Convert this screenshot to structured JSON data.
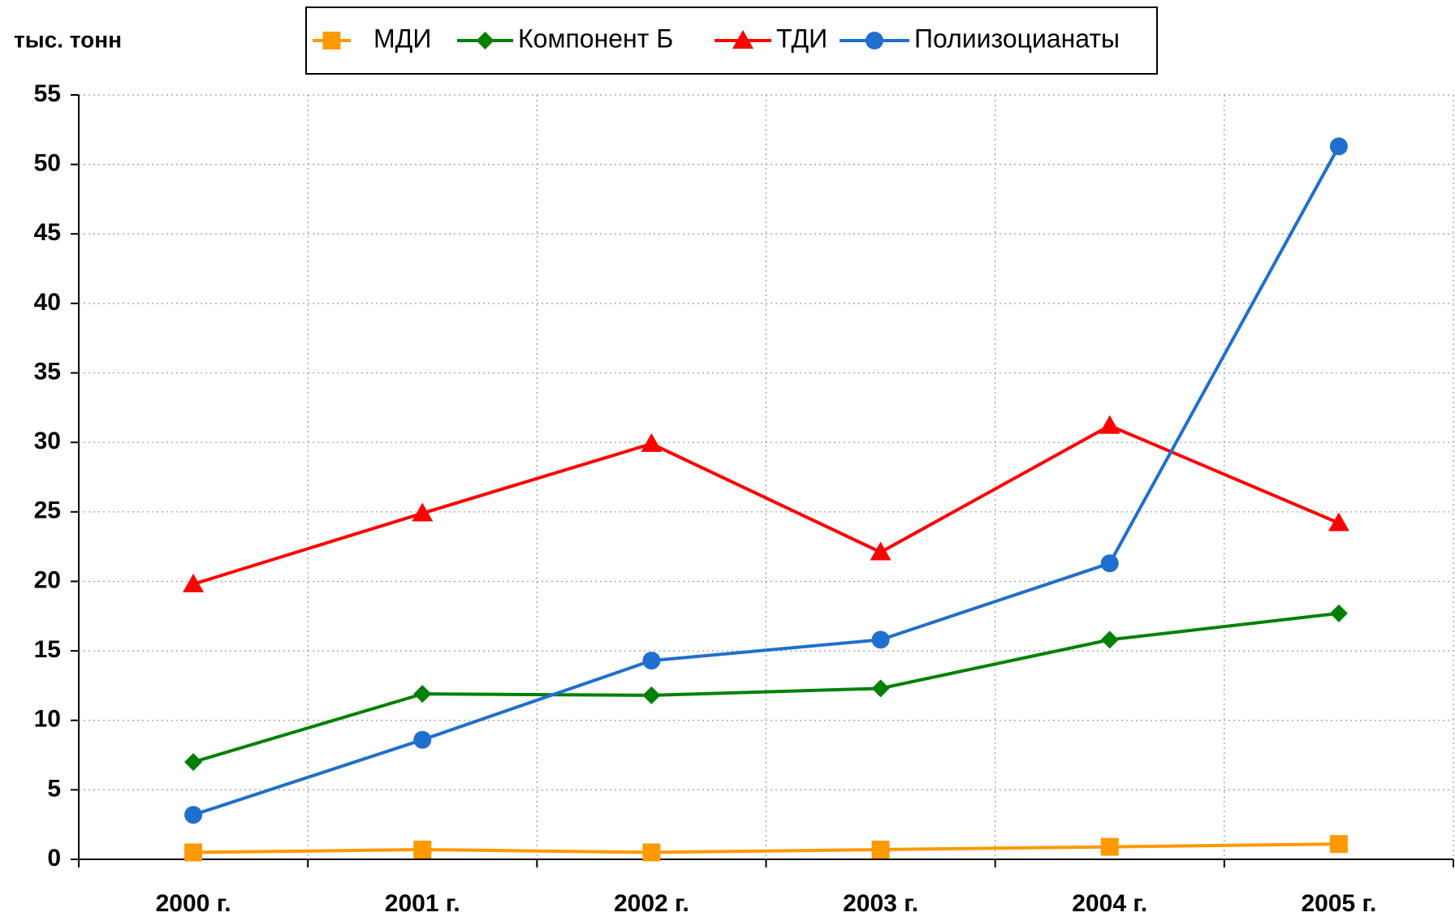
{
  "chart_data": {
    "type": "line",
    "y_label": "тыс. тонн",
    "categories": [
      "2000 г.",
      "2001 г.",
      "2002 г.",
      "2003 г.",
      "2004 г.",
      "2005 г."
    ],
    "series": [
      {
        "name": "МДИ",
        "color": "#ff9900",
        "marker": "square",
        "values": [
          0.5,
          0.7,
          0.5,
          0.7,
          0.9,
          1.1
        ]
      },
      {
        "name": "Компонент Б",
        "color": "#008000",
        "marker": "diamond",
        "values": [
          7.0,
          11.9,
          11.8,
          12.3,
          15.8,
          17.7
        ]
      },
      {
        "name": "ТДИ",
        "color": "#ff0000",
        "marker": "triangle",
        "values": [
          19.8,
          24.9,
          29.9,
          22.1,
          31.2,
          24.2
        ]
      },
      {
        "name": "Полиизоцианаты",
        "color": "#1f6fcf",
        "marker": "circle",
        "values": [
          3.2,
          8.6,
          14.3,
          15.8,
          21.3,
          51.3
        ]
      }
    ],
    "ylim": [
      0,
      55
    ],
    "yticks": [
      0,
      5,
      10,
      15,
      20,
      25,
      30,
      35,
      40,
      45,
      50,
      55
    ],
    "grid": true
  }
}
